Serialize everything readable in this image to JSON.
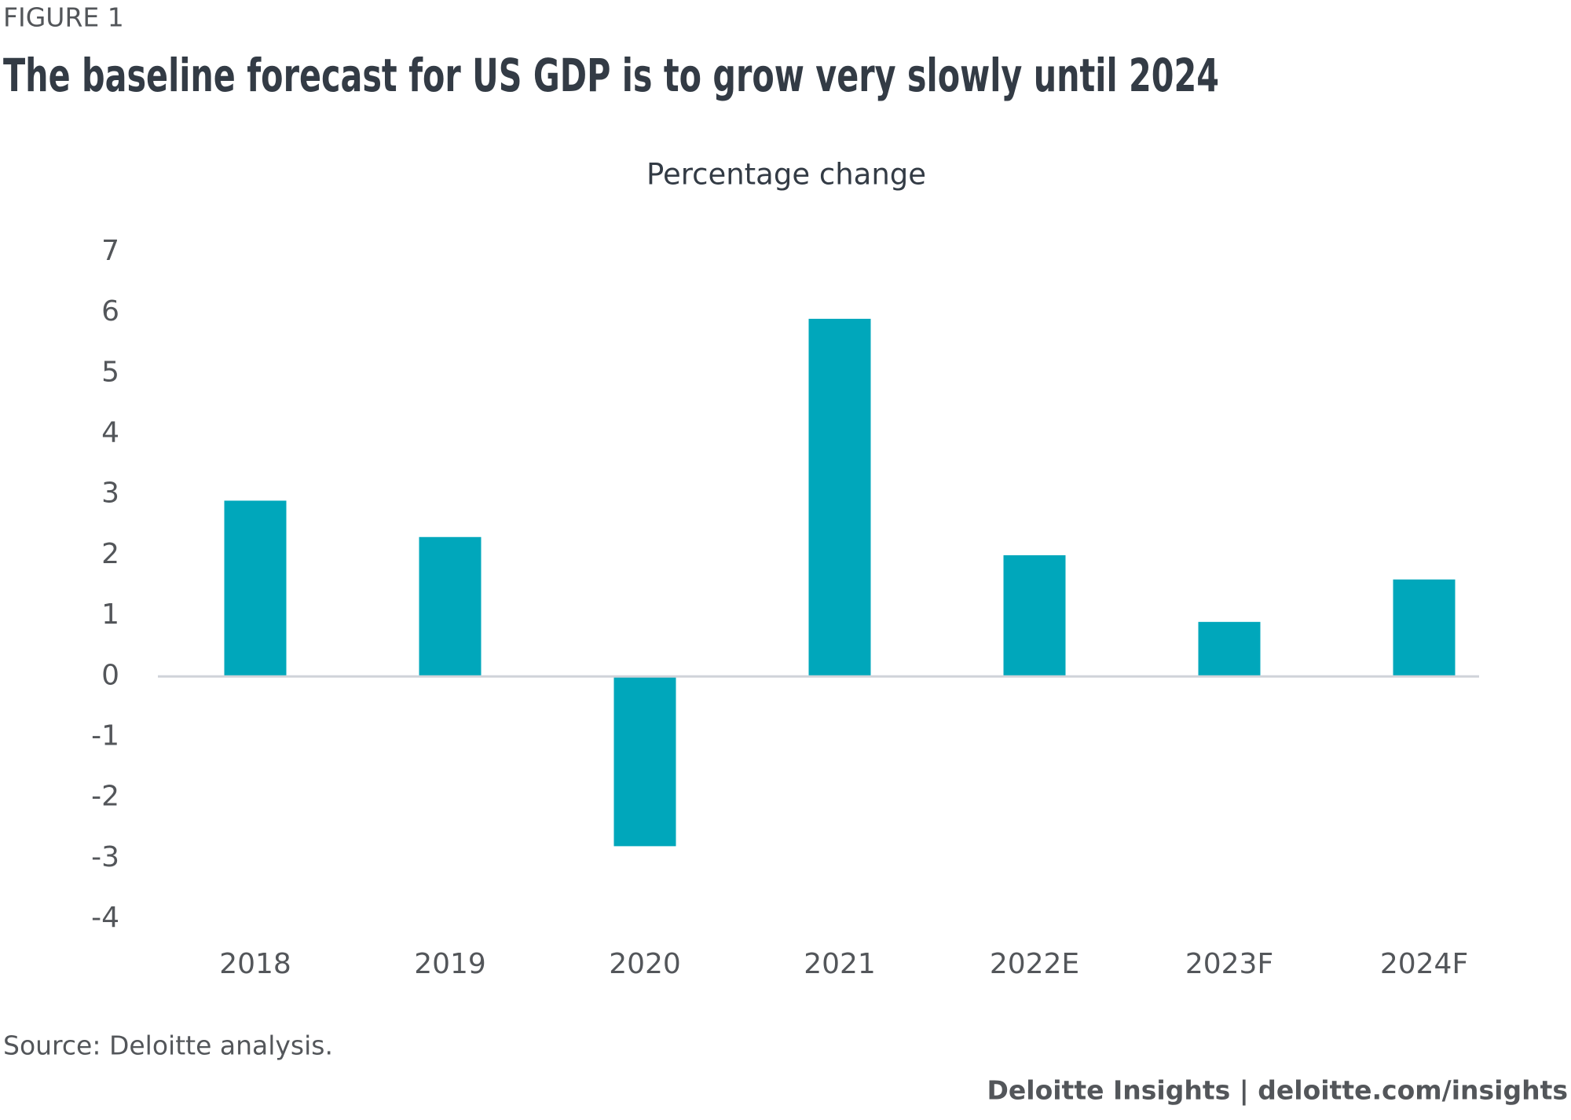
{
  "figure_label": "FIGURE 1",
  "chart_data": {
    "type": "bar",
    "title": "The baseline forecast for US GDP is to grow very slowly until 2024",
    "subtitle": "Percentage change",
    "categories": [
      "2018",
      "2019",
      "2020",
      "2021",
      "2022E",
      "2023F",
      "2024F"
    ],
    "values": [
      2.9,
      2.3,
      -2.8,
      5.9,
      2.0,
      0.9,
      1.6
    ],
    "color": "#00a7bb",
    "ylim": [
      -4,
      7
    ],
    "yticks": [
      -4,
      -3,
      -2,
      -1,
      0,
      1,
      2,
      3,
      4,
      5,
      6,
      7
    ],
    "grid": false
  },
  "source": "Source: Deloitte analysis.",
  "credit": "Deloitte Insights | deloitte.com/insights"
}
